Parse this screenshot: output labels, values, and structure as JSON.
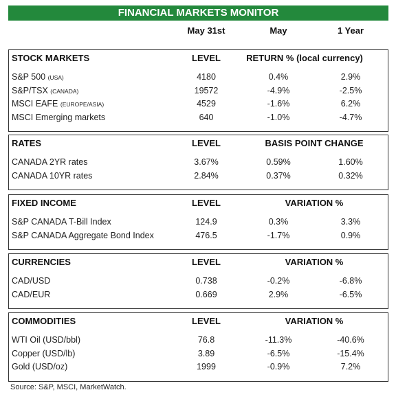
{
  "header": {
    "title": "FINANCIAL MARKETS MONITOR",
    "columns": [
      "May 31st",
      "May",
      "1 Year"
    ]
  },
  "sections": [
    {
      "title": "STOCK MARKETS",
      "level_header": "LEVEL",
      "change_header": "RETURN % (local currency)",
      "rows": [
        {
          "name": "S&P 500",
          "note": "(USA)",
          "level": "4180",
          "c1": "0.4%",
          "c2": "2.9%"
        },
        {
          "name": "S&P/TSX",
          "note": "(CANADA)",
          "level": "19572",
          "c1": "-4.9%",
          "c2": "-2.5%"
        },
        {
          "name": "MSCI EAFE",
          "note": "(EUROPE/ASIA)",
          "level": "4529",
          "c1": "-1.6%",
          "c2": "6.2%"
        },
        {
          "name": "MSCI Emerging markets",
          "level": "640",
          "c1": "-1.0%",
          "c2": "-4.7%"
        }
      ]
    },
    {
      "title": "RATES",
      "level_header": "LEVEL",
      "change_header": "BASIS POINT CHANGE",
      "rows": [
        {
          "name": "CANADA 2YR rates",
          "level": "3.67%",
          "c1": "0.59%",
          "c2": "1.60%"
        },
        {
          "name": "CANADA 10YR rates",
          "level": "2.84%",
          "c1": "0.37%",
          "c2": "0.32%"
        }
      ]
    },
    {
      "title": "FIXED INCOME",
      "level_header": "LEVEL",
      "change_header": "VARIATION %",
      "rows": [
        {
          "name": "S&P CANADA T-Bill Index",
          "level": "124.9",
          "c1": "0.3%",
          "c2": "3.3%"
        },
        {
          "name": "S&P CANADA Aggregate Bond Index",
          "level": "476.5",
          "c1": "-1.7%",
          "c2": "0.9%"
        }
      ]
    },
    {
      "title": "CURRENCIES",
      "level_header": "LEVEL",
      "change_header": "VARIATION %",
      "rows": [
        {
          "name": "CAD/USD",
          "level": "0.738",
          "c1": "-0.2%",
          "c2": "-6.8%"
        },
        {
          "name": "CAD/EUR",
          "level": "0.669",
          "c1": "2.9%",
          "c2": "-6.5%"
        }
      ]
    },
    {
      "title": "COMMODITIES",
      "level_header": "LEVEL",
      "change_header": "VARIATION %",
      "rows": [
        {
          "name": "WTI Oil (USD/bbl)",
          "level": "76.8",
          "c1": "-11.3%",
          "c2": "-40.6%"
        },
        {
          "name": "Copper (USD/lb)",
          "level": "3.89",
          "c1": "-6.5%",
          "c2": "-15.4%"
        },
        {
          "name": "Gold (USD/oz)",
          "level": "1999",
          "c1": "-0.9%",
          "c2": "7.2%"
        }
      ]
    }
  ],
  "source": "Source: S&P, MSCI, MarketWatch."
}
